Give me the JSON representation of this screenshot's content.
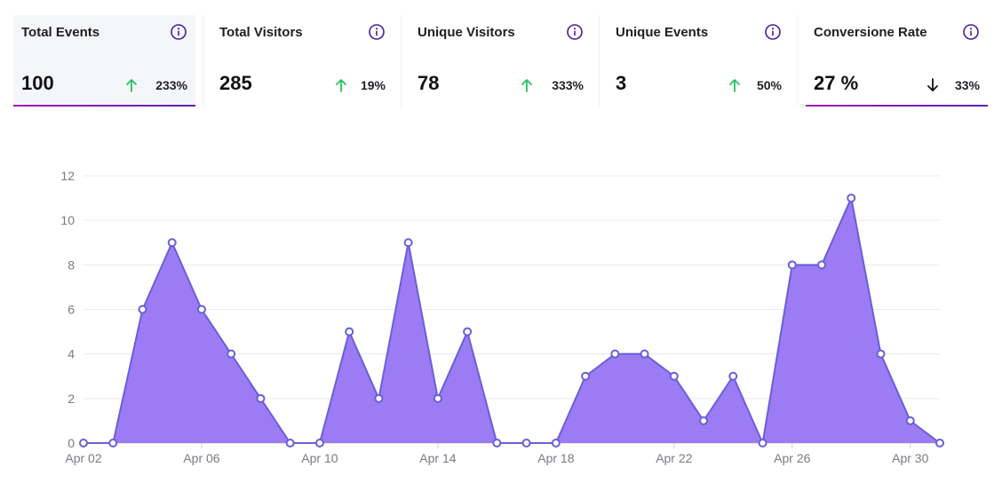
{
  "cards": [
    {
      "title": "Total Events",
      "value": "100",
      "change": "233%",
      "direction": "up",
      "active": true
    },
    {
      "title": "Total Visitors",
      "value": "285",
      "change": "19%",
      "direction": "up",
      "active": false
    },
    {
      "title": "Unique Visitors",
      "value": "78",
      "change": "333%",
      "direction": "up",
      "active": false
    },
    {
      "title": "Unique Events",
      "value": "3",
      "change": "50%",
      "direction": "up",
      "active": false
    },
    {
      "title": "Conversione Rate",
      "value": "27 %",
      "change": "33%",
      "direction": "down",
      "active": true
    }
  ],
  "icons": {
    "info": "info-circle-icon",
    "up": "arrow-up-icon",
    "down": "arrow-down-icon"
  },
  "colors": {
    "accent": "#5b21b6",
    "up": "#22c55e",
    "down": "#111114",
    "area_fill": "#9b7cf5",
    "line": "#6a5fd6"
  },
  "chart_data": {
    "type": "area",
    "x": [
      "Apr 02",
      "Apr 03",
      "Apr 04",
      "Apr 05",
      "Apr 06",
      "Apr 07",
      "Apr 08",
      "Apr 09",
      "Apr 10",
      "Apr 11",
      "Apr 12",
      "Apr 13",
      "Apr 14",
      "Apr 15",
      "Apr 16",
      "Apr 17",
      "Apr 18",
      "Apr 19",
      "Apr 20",
      "Apr 21",
      "Apr 22",
      "Apr 23",
      "Apr 24",
      "Apr 25",
      "Apr 26",
      "Apr 27",
      "Apr 28",
      "Apr 29",
      "Apr 30",
      "May 01"
    ],
    "series": [
      {
        "values": [
          0,
          0,
          6,
          9,
          6,
          4,
          2,
          0,
          0,
          5,
          2,
          9,
          2,
          5,
          0,
          0,
          0,
          3,
          4,
          4,
          3,
          1,
          3,
          0,
          8,
          8,
          11,
          4,
          1,
          0
        ]
      }
    ],
    "x_tick_labels": [
      "Apr 02",
      "Apr 06",
      "Apr 10",
      "Apr 14",
      "Apr 18",
      "Apr 22",
      "Apr 26",
      "Apr 30"
    ],
    "y_ticks": [
      0,
      2,
      4,
      6,
      8,
      10,
      12
    ],
    "ylim": [
      0,
      12
    ],
    "grid": true,
    "legend": "none"
  }
}
